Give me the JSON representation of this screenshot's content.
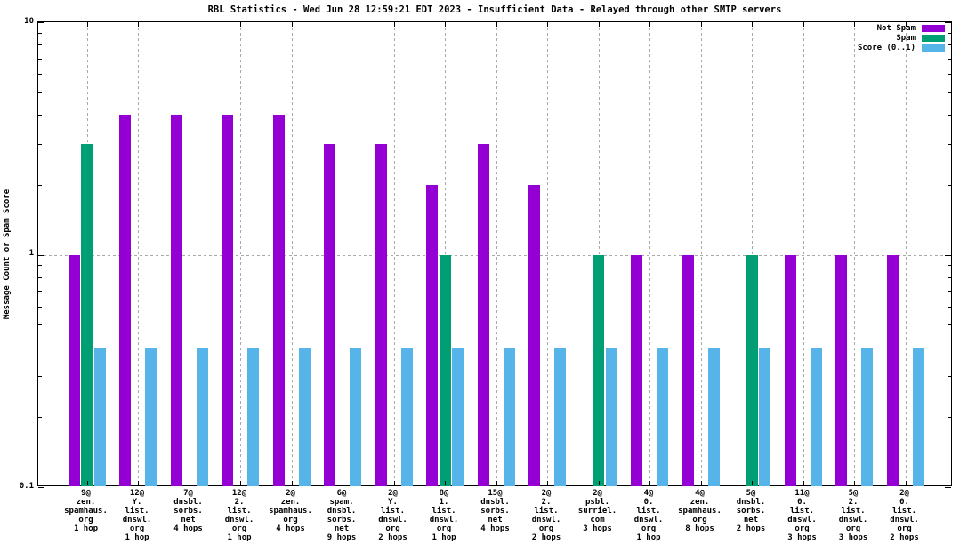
{
  "title": "RBL Statistics - Wed Jun 28 12:59:21 EDT 2023 - Insufficient Data - Relayed through other SMTP servers",
  "chart_data": {
    "type": "bar",
    "title": "RBL Statistics - Wed Jun 28 12:59:21 EDT 2023 - Insufficient Data - Relayed through other SMTP servers",
    "xlabel": "",
    "ylabel": "Message Count or Spam Score",
    "y_scale": "log",
    "ylim": [
      0.1,
      10
    ],
    "yticks": [
      {
        "label": "10",
        "value": 10
      },
      {
        "label": "1",
        "value": 1
      },
      {
        "label": "0.1",
        "value": 0.1
      }
    ],
    "grid": {
      "vertical_dashed_per_category": true,
      "horizontal_dashed_at": 1
    },
    "legend_position": "top-right-inside",
    "legend": [
      {
        "name": "Not Spam",
        "color": "#9400d3"
      },
      {
        "name": "Spam",
        "color": "#009e73"
      },
      {
        "name": "Score (0..1)",
        "color": "#56b4e9"
      }
    ],
    "categories": [
      [
        "9@",
        "zen.",
        "spamhaus.",
        "org",
        "1 hop"
      ],
      [
        "12@",
        "Y.",
        "list.",
        "dnswl.",
        "org",
        "1 hop"
      ],
      [
        "7@",
        "dnsbl.",
        "sorbs.",
        "net",
        "4 hops"
      ],
      [
        "12@",
        "2.",
        "list.",
        "dnswl.",
        "org",
        "1 hop"
      ],
      [
        "2@",
        "zen.",
        "spamhaus.",
        "org",
        "4 hops"
      ],
      [
        "6@",
        "spam.",
        "dnsbl.",
        "sorbs.",
        "net",
        "9 hops"
      ],
      [
        "2@",
        "Y.",
        "list.",
        "dnswl.",
        "org",
        "2 hops"
      ],
      [
        "8@",
        "1.",
        "list.",
        "dnswl.",
        "org",
        "1 hop"
      ],
      [
        "15@",
        "dnsbl.",
        "sorbs.",
        "net",
        "4 hops"
      ],
      [
        "2@",
        "2.",
        "list.",
        "dnswl.",
        "org",
        "2 hops"
      ],
      [
        "2@",
        "psbl.",
        "surriel.",
        "com",
        "3 hops"
      ],
      [
        "4@",
        "0.",
        "list.",
        "dnswl.",
        "org",
        "1 hop"
      ],
      [
        "4@",
        "zen.",
        "spamhaus.",
        "org",
        "8 hops"
      ],
      [
        "5@",
        "dnsbl.",
        "sorbs.",
        "net",
        "2 hops"
      ],
      [
        "11@",
        "0.",
        "list.",
        "dnswl.",
        "org",
        "3 hops"
      ],
      [
        "5@",
        "2.",
        "list.",
        "dnswl.",
        "org",
        "3 hops"
      ],
      [
        "2@",
        "0.",
        "list.",
        "dnswl.",
        "org",
        "2 hops"
      ]
    ],
    "series": [
      {
        "name": "Not Spam",
        "color": "#9400d3",
        "values": [
          1,
          4,
          4,
          4,
          4,
          3,
          3,
          2,
          3,
          2,
          null,
          1,
          1,
          null,
          1,
          1,
          1
        ]
      },
      {
        "name": "Spam",
        "color": "#009e73",
        "values": [
          3,
          null,
          null,
          null,
          null,
          null,
          null,
          1,
          null,
          null,
          1,
          null,
          null,
          1,
          null,
          null,
          null
        ]
      },
      {
        "name": "Score (0..1)",
        "color": "#56b4e9",
        "values": [
          0.4,
          0.4,
          0.4,
          0.4,
          0.4,
          0.4,
          0.4,
          0.4,
          0.4,
          0.4,
          0.4,
          0.4,
          0.4,
          0.4,
          0.4,
          0.4,
          0.4
        ]
      }
    ]
  }
}
